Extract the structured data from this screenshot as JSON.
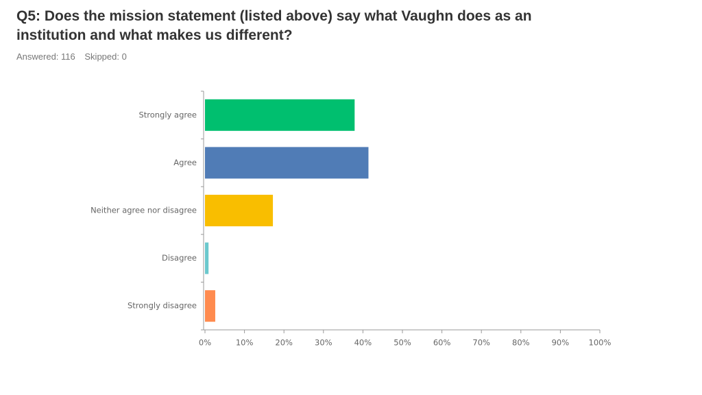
{
  "chart_data": {
    "type": "bar",
    "orientation": "horizontal",
    "title": "Q5: Does the mission statement (listed above) say what Vaughn does as an institution and what makes us different?",
    "answered": "Answered: 116",
    "skipped": "Skipped: 0",
    "categories": [
      "Strongly agree",
      "Agree",
      "Neither agree nor disagree",
      "Disagree",
      "Strongly disagree"
    ],
    "values": [
      37.9,
      41.4,
      17.2,
      0.9,
      2.6
    ],
    "colors": [
      "#00bf6f",
      "#507cb6",
      "#f9be00",
      "#6bc8cd",
      "#ff8b4f"
    ],
    "xlim": [
      0,
      100
    ],
    "xticks": [
      {
        "value": 0,
        "label": "0%"
      },
      {
        "value": 10,
        "label": "10%"
      },
      {
        "value": 20,
        "label": "20%"
      },
      {
        "value": 30,
        "label": "30%"
      },
      {
        "value": 40,
        "label": "40%"
      },
      {
        "value": 50,
        "label": "50%"
      },
      {
        "value": 60,
        "label": "60%"
      },
      {
        "value": 70,
        "label": "70%"
      },
      {
        "value": 80,
        "label": "80%"
      },
      {
        "value": 90,
        "label": "90%"
      },
      {
        "value": 100,
        "label": "100%"
      }
    ],
    "grid": false
  }
}
